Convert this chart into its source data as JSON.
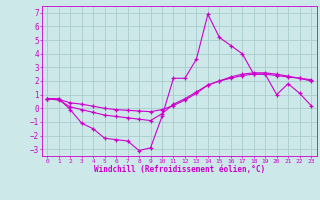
{
  "xlabel": "Windchill (Refroidissement éolien,°C)",
  "bg_color": "#cce8e8",
  "grid_color": "#aacccc",
  "line_color": "#cc00cc",
  "xlim": [
    -0.5,
    23.5
  ],
  "ylim": [
    -3.5,
    7.5
  ],
  "yticks": [
    -3,
    -2,
    -1,
    0,
    1,
    2,
    3,
    4,
    5,
    6,
    7
  ],
  "xticks": [
    0,
    1,
    2,
    3,
    4,
    5,
    6,
    7,
    8,
    9,
    10,
    11,
    12,
    13,
    14,
    15,
    16,
    17,
    18,
    19,
    20,
    21,
    22,
    23
  ],
  "line1_x": [
    0,
    1,
    2,
    3,
    4,
    5,
    6,
    7,
    8,
    9,
    10,
    11,
    12,
    13,
    14,
    15,
    16,
    17,
    18,
    19,
    20,
    21,
    22,
    23
  ],
  "line1_y": [
    0.7,
    0.7,
    -0.1,
    -1.1,
    -1.5,
    -2.2,
    -2.3,
    -2.4,
    -3.1,
    -2.9,
    -0.6,
    2.2,
    2.2,
    3.6,
    6.9,
    5.2,
    4.6,
    4.0,
    2.5,
    2.5,
    1.0,
    1.8,
    1.1,
    0.2
  ],
  "line2_x": [
    0,
    1,
    2,
    3,
    4,
    5,
    6,
    7,
    8,
    9,
    10,
    11,
    12,
    13,
    14,
    15,
    16,
    17,
    18,
    19,
    20,
    21,
    22,
    23
  ],
  "line2_y": [
    0.7,
    0.6,
    0.1,
    -0.1,
    -0.3,
    -0.5,
    -0.6,
    -0.7,
    -0.8,
    -0.9,
    -0.4,
    0.3,
    0.7,
    1.2,
    1.7,
    2.0,
    2.2,
    2.4,
    2.5,
    2.5,
    2.4,
    2.3,
    2.2,
    2.1
  ],
  "line3_x": [
    0,
    1,
    2,
    3,
    4,
    5,
    6,
    7,
    8,
    9,
    10,
    11,
    12,
    13,
    14,
    15,
    16,
    17,
    18,
    19,
    20,
    21,
    22,
    23
  ],
  "line3_y": [
    0.7,
    0.65,
    0.4,
    0.3,
    0.15,
    0.0,
    -0.1,
    -0.15,
    -0.2,
    -0.25,
    -0.1,
    0.2,
    0.6,
    1.1,
    1.7,
    2.0,
    2.3,
    2.5,
    2.6,
    2.6,
    2.5,
    2.35,
    2.2,
    2.0
  ]
}
